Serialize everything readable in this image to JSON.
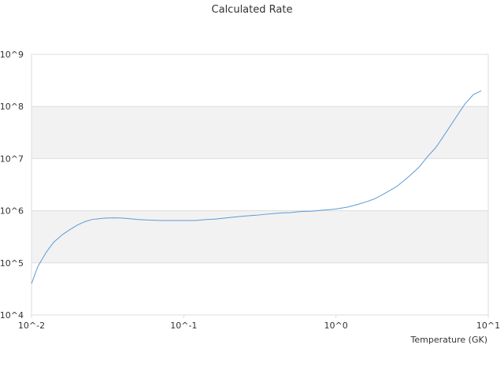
{
  "chart_data": {
    "type": "line",
    "title": "Calculated Rate",
    "xlabel": "Temperature (GK)",
    "ylabel": "",
    "x_scale": "log",
    "y_scale": "log",
    "xlim": [
      0.01,
      10
    ],
    "ylim": [
      10000,
      1000000000
    ],
    "x_ticks": [
      0.01,
      0.1,
      1,
      10
    ],
    "x_tick_labels": [
      "10^-2",
      "10^-1",
      "10^0",
      "10^1"
    ],
    "y_ticks": [
      10000,
      100000,
      1000000,
      10000000,
      100000000,
      1000000000
    ],
    "y_tick_labels": [
      "10^4",
      "10^5",
      "10^6",
      "10^7",
      "10^8",
      "10^9"
    ],
    "grid": true,
    "alternating_bands": true,
    "legend": "none",
    "colors": {
      "line": "#5b9bd5",
      "band": "#f2f2f2",
      "grid": "#dddddd"
    },
    "series": [
      {
        "x": [
          0.01,
          0.011,
          0.0125,
          0.014,
          0.016,
          0.018,
          0.02,
          0.0225,
          0.025,
          0.03,
          0.035,
          0.04,
          0.045,
          0.05,
          0.06,
          0.07,
          0.08,
          0.09,
          0.1,
          0.12,
          0.14,
          0.16,
          0.2,
          0.25,
          0.3,
          0.35,
          0.4,
          0.45,
          0.5,
          0.6,
          0.7,
          0.8,
          0.9,
          1.0,
          1.2,
          1.4,
          1.6,
          1.8,
          2.0,
          2.5,
          3.0,
          3.5,
          4.0,
          4.5,
          5.0,
          6.0,
          7.0,
          8.0,
          9.0
        ],
        "y": [
          40000,
          85000,
          160000,
          250000,
          350000,
          440000,
          530000,
          620000,
          680000,
          720000,
          730000,
          720000,
          700000,
          680000,
          660000,
          650000,
          650000,
          650000,
          650000,
          650000,
          680000,
          690000,
          740000,
          790000,
          820000,
          860000,
          890000,
          910000,
          920000,
          970000,
          980000,
          1020000,
          1050000,
          1080000,
          1180000,
          1330000,
          1500000,
          1700000,
          2000000,
          2900000,
          4500000,
          6800000,
          11000000,
          16000000,
          25000000,
          56000000,
          110000000,
          170000000,
          200000000
        ]
      }
    ]
  }
}
